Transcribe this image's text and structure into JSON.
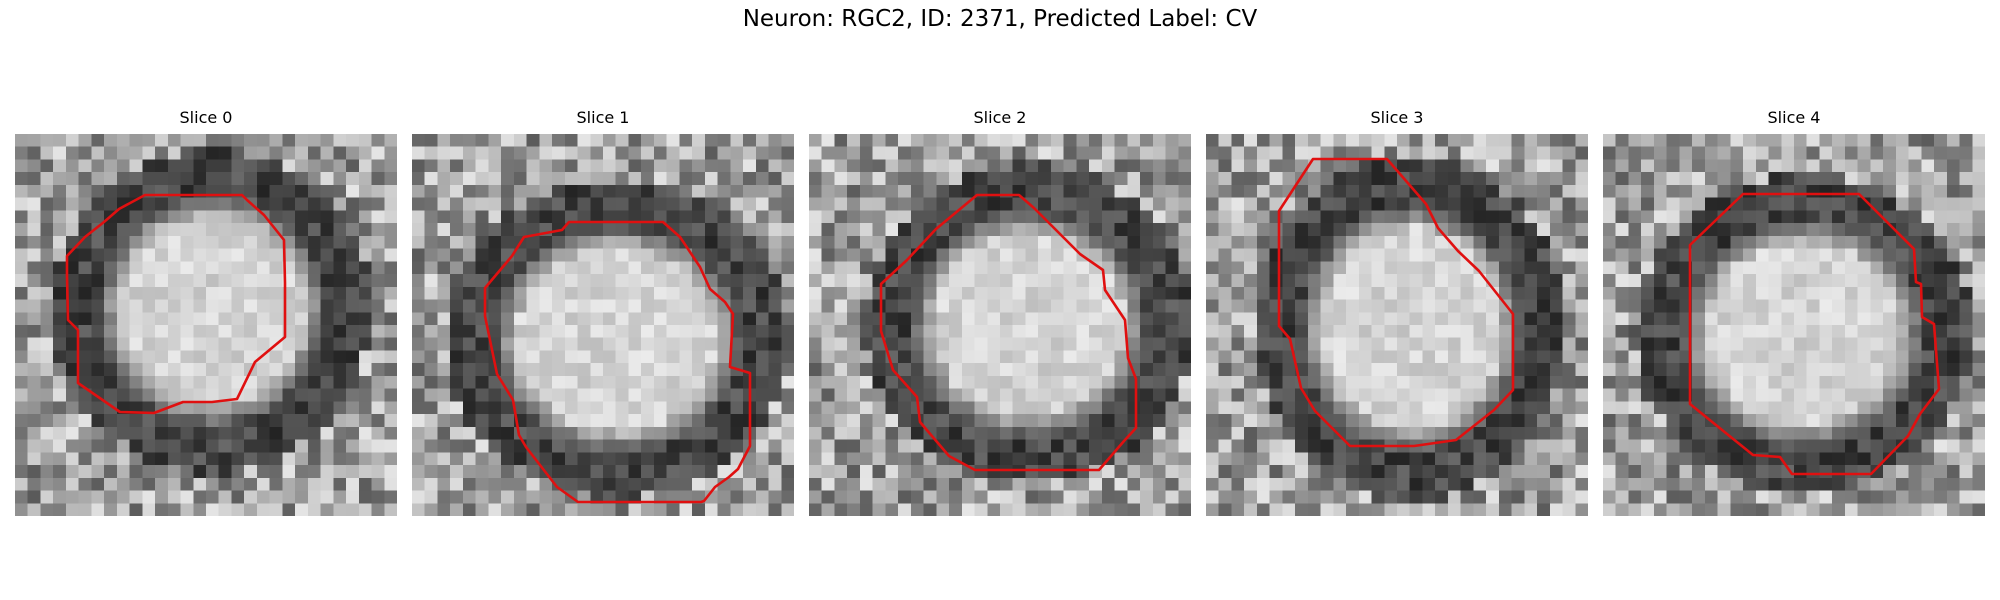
{
  "figure": {
    "title": "Neuron: RGC2, ID: 2371, Predicted Label: CV",
    "contour_color": "#e01010",
    "colormap": "gray",
    "slices": [
      {
        "title": "Slice 0"
      },
      {
        "title": "Slice 1"
      },
      {
        "title": "Slice 2"
      },
      {
        "title": "Slice 3"
      },
      {
        "title": "Slice 4"
      }
    ]
  }
}
